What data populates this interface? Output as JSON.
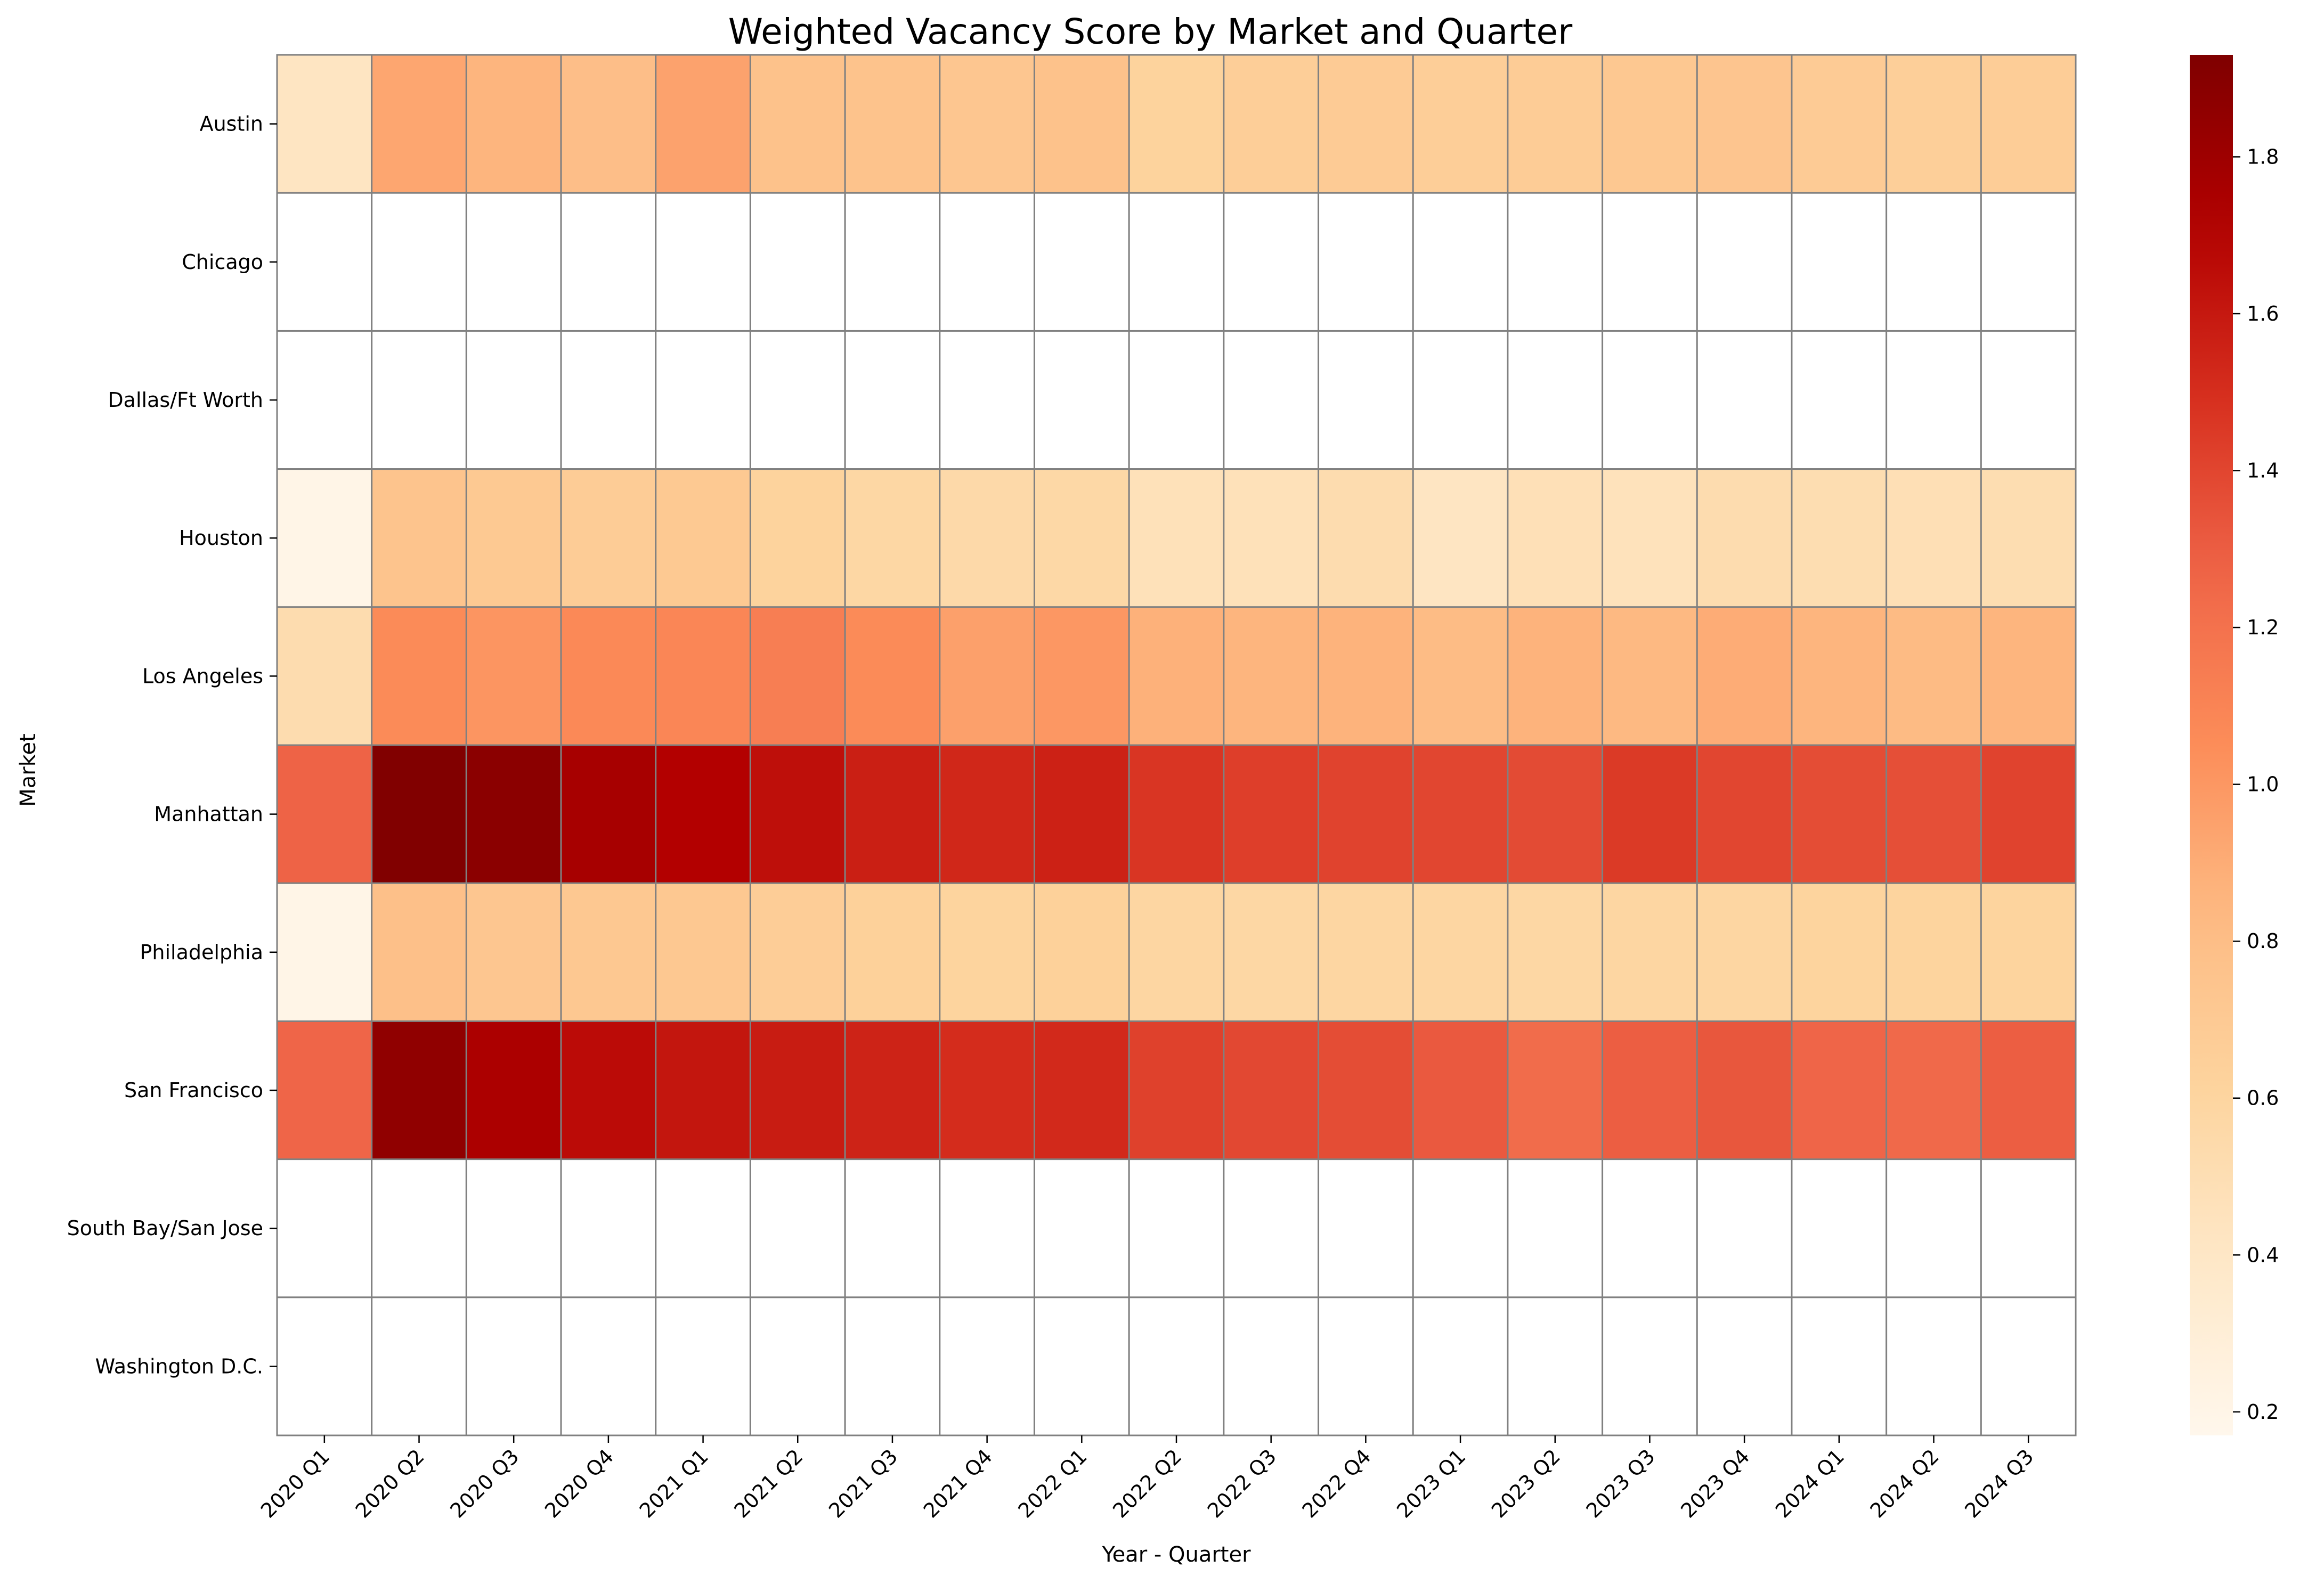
{
  "chart_data": {
    "type": "heatmap",
    "title": "Weighted Vacancy Score by Market and Quarter",
    "xlabel": "Year - Quarter",
    "ylabel": "Market",
    "x": [
      "2020 Q1",
      "2020 Q2",
      "2020 Q3",
      "2020 Q4",
      "2021 Q1",
      "2021 Q2",
      "2021 Q3",
      "2021 Q4",
      "2022 Q1",
      "2022 Q2",
      "2022 Q3",
      "2022 Q4",
      "2023 Q1",
      "2023 Q2",
      "2023 Q3",
      "2023 Q4",
      "2024 Q1",
      "2024 Q2",
      "2024 Q3"
    ],
    "y": [
      "Austin",
      "Chicago",
      "Dallas/Ft Worth",
      "Houston",
      "Los Angeles",
      "Manhattan",
      "Philadelphia",
      "San Francisco",
      "South Bay/San Jose",
      "Washington D.C."
    ],
    "values": [
      [
        0.42,
        0.93,
        0.86,
        0.8,
        0.95,
        0.77,
        0.76,
        0.73,
        0.77,
        0.62,
        0.66,
        0.69,
        0.66,
        0.68,
        0.72,
        0.74,
        0.69,
        0.65,
        0.67
      ],
      [
        null,
        null,
        null,
        null,
        null,
        null,
        null,
        null,
        null,
        null,
        null,
        null,
        null,
        null,
        null,
        null,
        null,
        null,
        null
      ],
      [
        null,
        null,
        null,
        null,
        null,
        null,
        null,
        null,
        null,
        null,
        null,
        null,
        null,
        null,
        null,
        null,
        null,
        null,
        null
      ],
      [
        0.2,
        0.75,
        0.71,
        0.68,
        0.71,
        0.62,
        0.58,
        0.55,
        0.57,
        0.47,
        0.47,
        0.52,
        0.42,
        0.48,
        0.46,
        0.52,
        0.51,
        0.49,
        0.51
      ],
      [
        0.52,
        1.06,
        1.01,
        1.07,
        1.09,
        1.13,
        1.06,
        0.96,
        1.0,
        0.88,
        0.86,
        0.87,
        0.82,
        0.87,
        0.84,
        0.9,
        0.86,
        0.83,
        0.86
      ],
      [
        1.28,
        1.92,
        1.88,
        1.76,
        1.71,
        1.64,
        1.57,
        1.53,
        1.56,
        1.47,
        1.43,
        1.41,
        1.4,
        1.38,
        1.45,
        1.4,
        1.37,
        1.36,
        1.41
      ],
      [
        0.2,
        0.79,
        0.73,
        0.72,
        0.72,
        0.67,
        0.64,
        0.61,
        0.64,
        0.59,
        0.58,
        0.59,
        0.59,
        0.58,
        0.59,
        0.59,
        0.61,
        0.61,
        0.61
      ],
      [
        1.27,
        1.86,
        1.74,
        1.66,
        1.61,
        1.58,
        1.55,
        1.51,
        1.52,
        1.42,
        1.39,
        1.37,
        1.32,
        1.23,
        1.3,
        1.33,
        1.27,
        1.25,
        1.3
      ],
      [
        null,
        null,
        null,
        null,
        null,
        null,
        null,
        null,
        null,
        null,
        null,
        null,
        null,
        null,
        null,
        null,
        null,
        null,
        null
      ],
      [
        null,
        null,
        null,
        null,
        null,
        null,
        null,
        null,
        null,
        null,
        null,
        null,
        null,
        null,
        null,
        null,
        null,
        null,
        null
      ]
    ],
    "colormap": "OrRd",
    "vmin": 0.17,
    "vmax": 1.93,
    "colorbar_ticks": [
      0.2,
      0.4,
      0.6,
      0.8,
      1.0,
      1.2,
      1.4,
      1.6,
      1.8
    ],
    "colorbar_tick_labels": [
      "0.2",
      "0.4",
      "0.6",
      "0.8",
      "1.0",
      "1.2",
      "1.4",
      "1.6",
      "1.8"
    ],
    "missing_color": "#ffffff",
    "cell_edge_color": "#808080",
    "grid": false,
    "legend": "colorbar-right"
  }
}
